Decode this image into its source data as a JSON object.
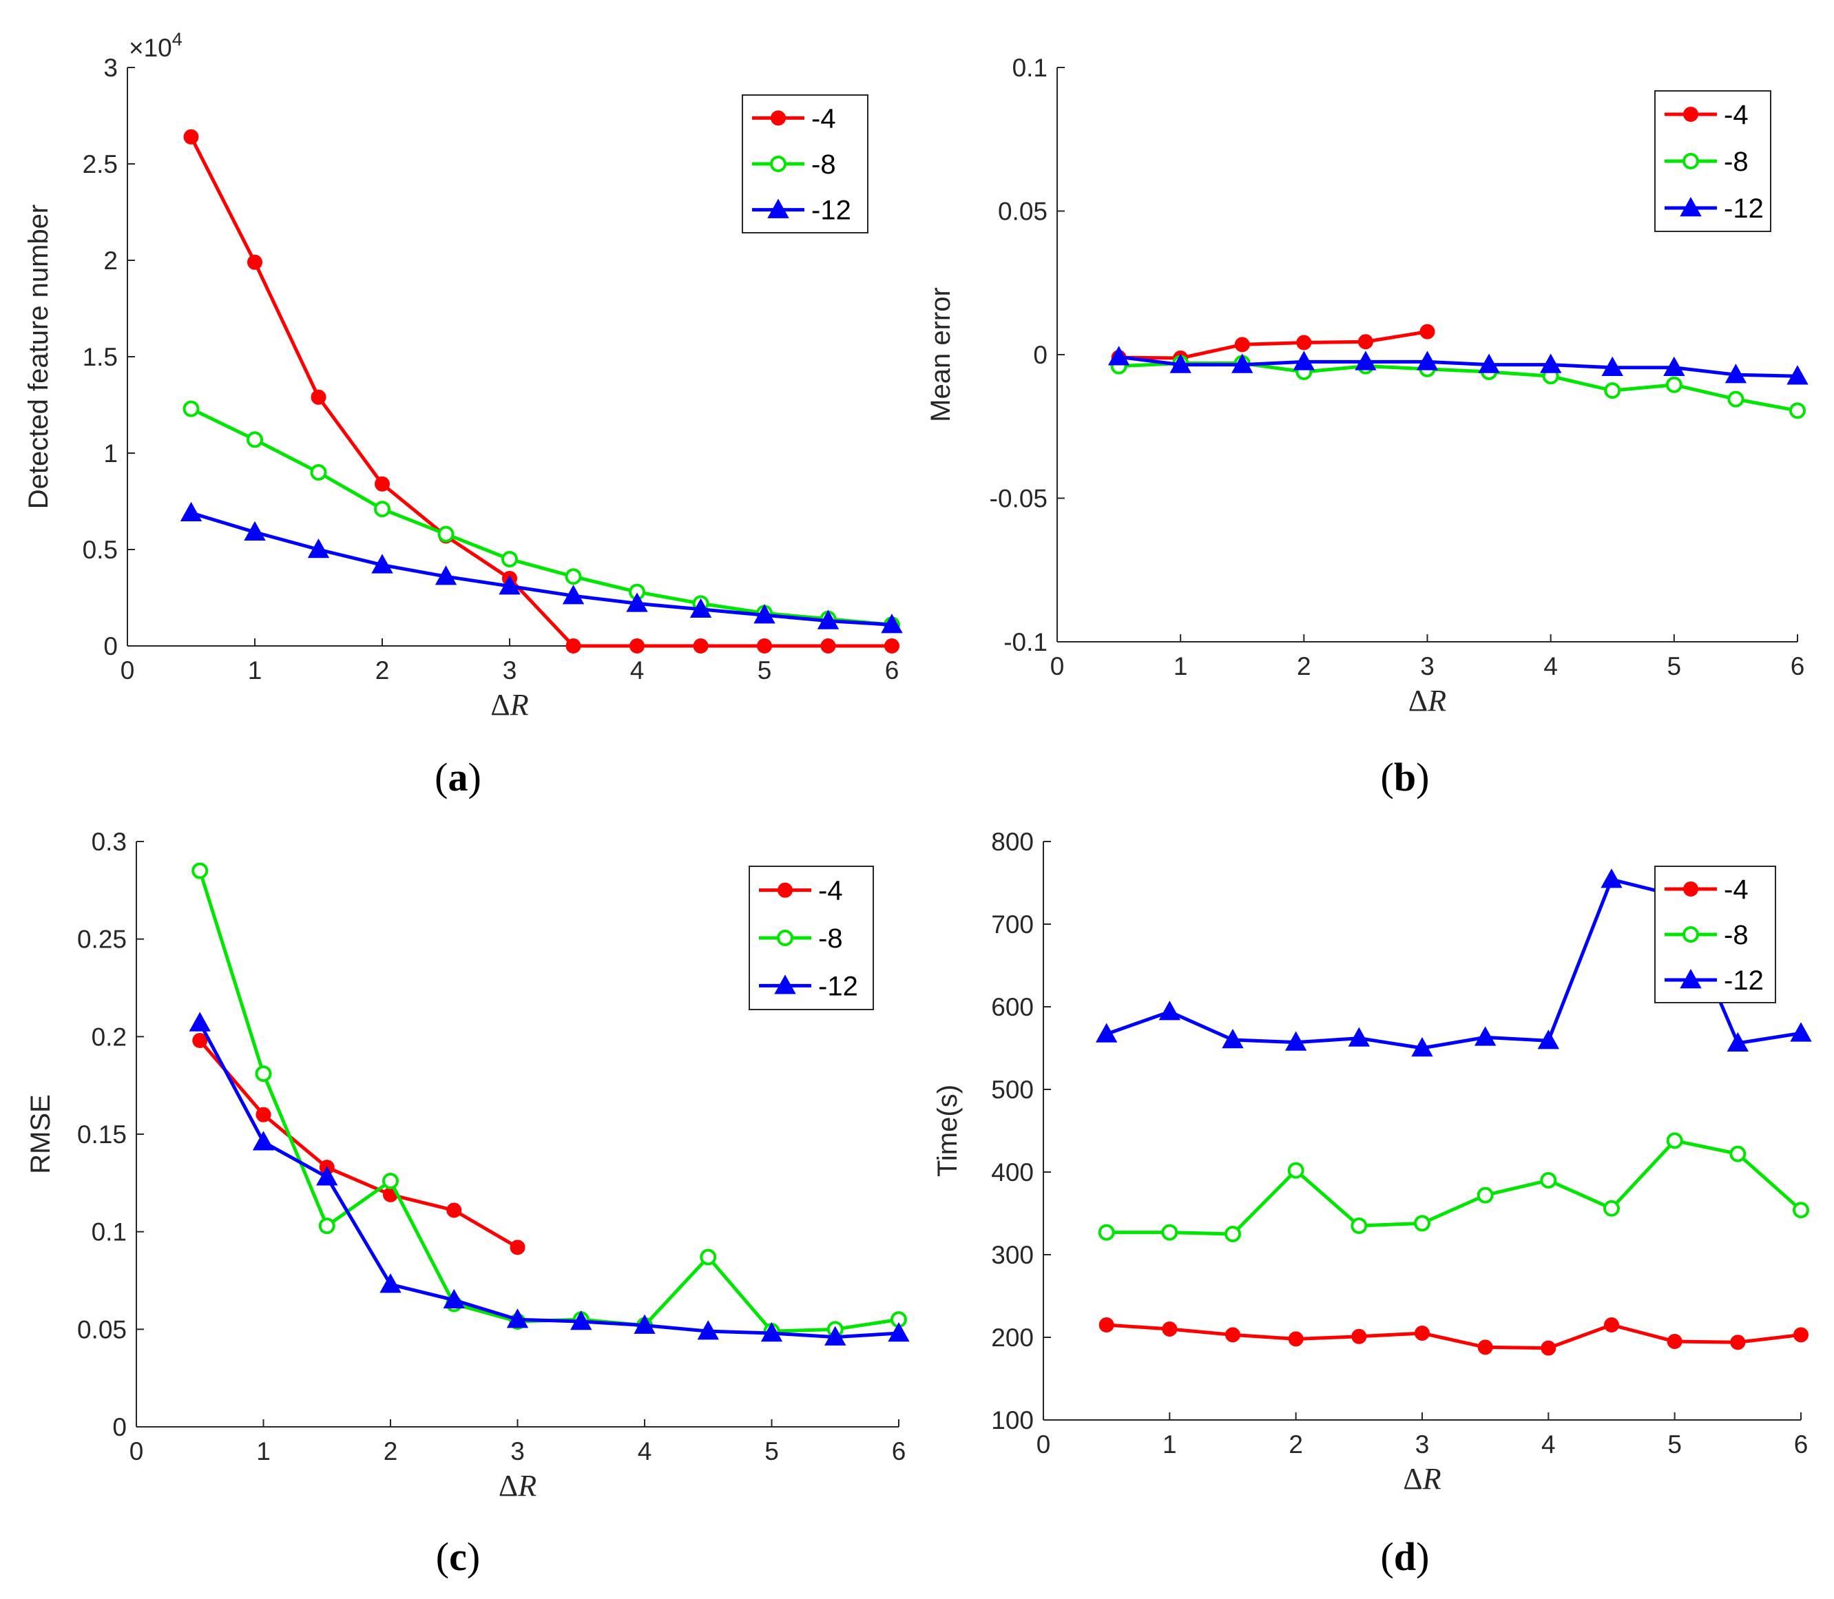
{
  "colors": {
    "red": "#ff0000",
    "green": "#00e600",
    "blue": "#0000ff"
  },
  "chart_data": [
    {
      "panel": "a",
      "type": "line",
      "caption": {
        "open": "(",
        "letter": "a",
        "close": ")"
      },
      "xlabel": {
        "delta": "Δ",
        "var": "R"
      },
      "ylabel": "Detected feature number",
      "y_exponent": {
        "base": "×10",
        "power": "4"
      },
      "xlim": [
        0,
        6
      ],
      "ylim": [
        0,
        3
      ],
      "xticks": [
        0,
        1,
        2,
        3,
        4,
        5,
        6
      ],
      "xtick_labels": [
        "0",
        "1",
        "2",
        "3",
        "4",
        "5",
        "6"
      ],
      "yticks": [
        0,
        0.5,
        1,
        1.5,
        2,
        2.5,
        3
      ],
      "ytick_labels": [
        "0",
        "0.5",
        "1",
        "1.5",
        "2",
        "2.5",
        "3"
      ],
      "legend_position": "top-right",
      "series": [
        {
          "name": "-4",
          "color": "#ff0000",
          "marker": "dot",
          "x": [
            0.5,
            1,
            1.5,
            2,
            2.5,
            3,
            3.5,
            4,
            4.5,
            5,
            5.5,
            6
          ],
          "y": [
            2.64,
            1.99,
            1.29,
            0.84,
            0.57,
            0.35,
            0,
            0,
            0,
            0,
            0,
            0
          ]
        },
        {
          "name": "-8",
          "color": "#00e600",
          "marker": "circle",
          "x": [
            0.5,
            1,
            1.5,
            2,
            2.5,
            3,
            3.5,
            4,
            4.5,
            5,
            5.5,
            6
          ],
          "y": [
            1.23,
            1.07,
            0.9,
            0.71,
            0.58,
            0.45,
            0.36,
            0.28,
            0.22,
            0.17,
            0.14,
            0.11
          ]
        },
        {
          "name": "-12",
          "color": "#0000ff",
          "marker": "triangle",
          "x": [
            0.5,
            1,
            1.5,
            2,
            2.5,
            3,
            3.5,
            4,
            4.5,
            5,
            5.5,
            6
          ],
          "y": [
            0.69,
            0.59,
            0.5,
            0.42,
            0.36,
            0.31,
            0.26,
            0.22,
            0.19,
            0.16,
            0.13,
            0.11
          ]
        }
      ]
    },
    {
      "panel": "b",
      "type": "line",
      "caption": {
        "open": "(",
        "letter": "b",
        "close": ")"
      },
      "xlabel": {
        "delta": "Δ",
        "var": "R"
      },
      "ylabel": "Mean error",
      "xlim": [
        0,
        6
      ],
      "ylim": [
        -0.1,
        0.1
      ],
      "xticks": [
        0,
        1,
        2,
        3,
        4,
        5,
        6
      ],
      "xtick_labels": [
        "0",
        "1",
        "2",
        "3",
        "4",
        "5",
        "6"
      ],
      "yticks": [
        -0.1,
        -0.05,
        0,
        0.05,
        0.1
      ],
      "ytick_labels": [
        "-0.1",
        "-0.05",
        "0",
        "0.05",
        "0.1"
      ],
      "legend_position": "top-right",
      "series": [
        {
          "name": "-4",
          "color": "#ff0000",
          "marker": "dot",
          "x": [
            0.5,
            1,
            1.5,
            2,
            2.5,
            3
          ],
          "y": [
            -0.001,
            -0.0012,
            0.0035,
            0.0042,
            0.0045,
            0.008
          ]
        },
        {
          "name": "-8",
          "color": "#00e600",
          "marker": "circle",
          "x": [
            0.5,
            1,
            1.5,
            2,
            2.5,
            3,
            3.5,
            4,
            4.5,
            5,
            5.5,
            6
          ],
          "y": [
            -0.004,
            -0.003,
            -0.003,
            -0.006,
            -0.004,
            -0.005,
            -0.006,
            -0.0075,
            -0.0125,
            -0.0105,
            -0.0155,
            -0.0195
          ]
        },
        {
          "name": "-12",
          "color": "#0000ff",
          "marker": "triangle",
          "x": [
            0.5,
            1,
            1.5,
            2,
            2.5,
            3,
            3.5,
            4,
            4.5,
            5,
            5.5,
            6
          ],
          "y": [
            -0.0008,
            -0.0035,
            -0.0035,
            -0.0025,
            -0.0025,
            -0.0025,
            -0.0035,
            -0.0035,
            -0.0045,
            -0.0045,
            -0.007,
            -0.0075
          ]
        }
      ]
    },
    {
      "panel": "c",
      "type": "line",
      "caption": {
        "open": "(",
        "letter": "c",
        "close": ")"
      },
      "xlabel": {
        "delta": "Δ",
        "var": "R"
      },
      "ylabel": "RMSE",
      "xlim": [
        0,
        6
      ],
      "ylim": [
        0,
        0.3
      ],
      "xticks": [
        0,
        1,
        2,
        3,
        4,
        5,
        6
      ],
      "xtick_labels": [
        "0",
        "1",
        "2",
        "3",
        "4",
        "5",
        "6"
      ],
      "yticks": [
        0,
        0.05,
        0.1,
        0.15,
        0.2,
        0.25,
        0.3
      ],
      "ytick_labels": [
        "0",
        "0.05",
        "0.1",
        "0.15",
        "0.2",
        "0.25",
        "0.3"
      ],
      "legend_position": "top-right",
      "series": [
        {
          "name": "-4",
          "color": "#ff0000",
          "marker": "dot",
          "x": [
            0.5,
            1,
            1.5,
            2,
            2.5,
            3
          ],
          "y": [
            0.198,
            0.16,
            0.133,
            0.119,
            0.111,
            0.092
          ]
        },
        {
          "name": "-8",
          "color": "#00e600",
          "marker": "circle",
          "x": [
            0.5,
            1,
            1.5,
            2,
            2.5,
            3,
            3.5,
            4,
            4.5,
            5,
            5.5,
            6
          ],
          "y": [
            0.285,
            0.181,
            0.103,
            0.126,
            0.063,
            0.054,
            0.055,
            0.052,
            0.087,
            0.049,
            0.05,
            0.055
          ]
        },
        {
          "name": "-12",
          "color": "#0000ff",
          "marker": "triangle",
          "x": [
            0.5,
            1,
            1.5,
            2,
            2.5,
            3,
            3.5,
            4,
            4.5,
            5,
            5.5,
            6
          ],
          "y": [
            0.207,
            0.146,
            0.128,
            0.073,
            0.065,
            0.055,
            0.054,
            0.052,
            0.049,
            0.048,
            0.046,
            0.048
          ]
        }
      ]
    },
    {
      "panel": "d",
      "type": "line",
      "caption": {
        "open": "(",
        "letter": "d",
        "close": ")"
      },
      "xlabel": {
        "delta": "Δ",
        "var": "R"
      },
      "ylabel": "Time(s)",
      "xlim": [
        0,
        6
      ],
      "ylim": [
        100,
        800
      ],
      "xticks": [
        0,
        1,
        2,
        3,
        4,
        5,
        6
      ],
      "xtick_labels": [
        "0",
        "1",
        "2",
        "3",
        "4",
        "5",
        "6"
      ],
      "yticks": [
        100,
        200,
        300,
        400,
        500,
        600,
        700,
        800
      ],
      "ytick_labels": [
        "100",
        "200",
        "300",
        "400",
        "500",
        "600",
        "700",
        "800"
      ],
      "legend_position": "top-right",
      "series": [
        {
          "name": "-4",
          "color": "#ff0000",
          "marker": "dot",
          "x": [
            0.5,
            1,
            1.5,
            2,
            2.5,
            3,
            3.5,
            4,
            4.5,
            5,
            5.5,
            6
          ],
          "y": [
            215,
            210,
            203,
            198,
            201,
            205,
            188,
            187,
            215,
            195,
            194,
            203
          ]
        },
        {
          "name": "-8",
          "color": "#00e600",
          "marker": "circle",
          "x": [
            0.5,
            1,
            1.5,
            2,
            2.5,
            3,
            3.5,
            4,
            4.5,
            5,
            5.5,
            6
          ],
          "y": [
            327,
            327,
            325,
            402,
            335,
            338,
            372,
            390,
            356,
            438,
            422,
            354
          ]
        },
        {
          "name": "-12",
          "color": "#0000ff",
          "marker": "triangle",
          "x": [
            0.5,
            1,
            1.5,
            2,
            2.5,
            3,
            3.5,
            4,
            4.5,
            5,
            5.5,
            6
          ],
          "y": [
            567,
            594,
            560,
            557,
            562,
            550,
            563,
            559,
            754,
            735,
            556,
            568
          ]
        }
      ]
    }
  ]
}
